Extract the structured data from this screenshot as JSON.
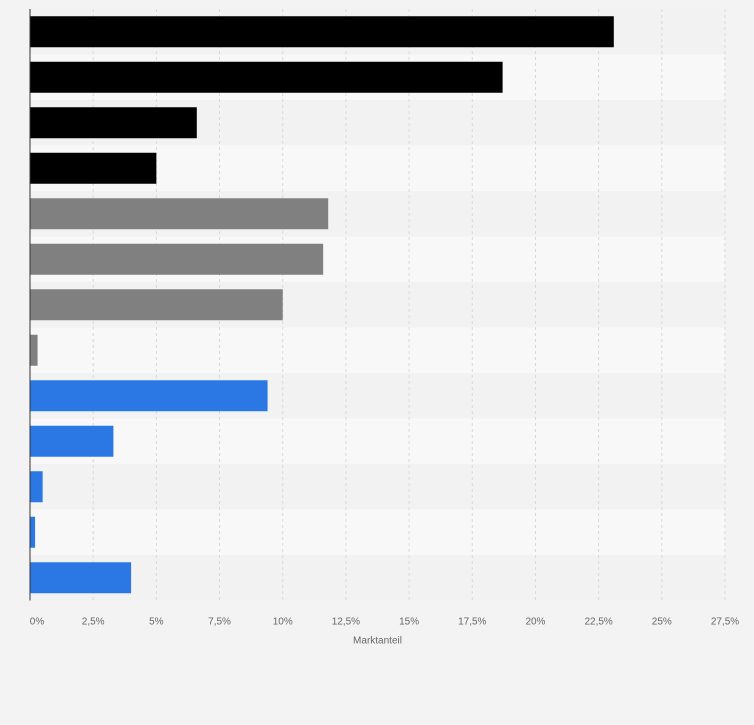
{
  "chart_data": {
    "type": "bar",
    "orientation": "horizontal",
    "title": "",
    "xlabel": "Marktanteil",
    "ylabel": "",
    "xlim": [
      0,
      27.5
    ],
    "x_ticks": [
      0,
      2.5,
      5,
      7.5,
      10,
      12.5,
      15,
      17.5,
      20,
      22.5,
      25,
      27.5
    ],
    "x_tick_labels": [
      "0%",
      "2,5%",
      "5%",
      "7,5%",
      "10%",
      "12,5%",
      "15%",
      "17,5%",
      "20%",
      "22,5%",
      "25%",
      "27,5%"
    ],
    "grid": "vertical dashed",
    "categories": [
      "",
      "",
      "",
      "",
      "",
      "",
      "",
      "",
      "",
      "",
      "",
      "",
      ""
    ],
    "values": [
      23.1,
      18.7,
      6.6,
      5.0,
      11.8,
      11.6,
      10.0,
      0.3,
      9.4,
      3.3,
      0.5,
      0.2,
      4.0
    ],
    "bar_colors": [
      "#000000",
      "#000000",
      "#000000",
      "#000000",
      "#808080",
      "#808080",
      "#808080",
      "#808080",
      "#2b78e4",
      "#2b78e4",
      "#2b78e4",
      "#2b78e4",
      "#2b78e4"
    ]
  },
  "colors": {
    "background": "#f3f3f3",
    "row_light": "#f8f8f8",
    "row_dark": "#f2f2f2",
    "grid": "#d9d9d9",
    "axis": "#333333",
    "tick_text": "#666666"
  }
}
